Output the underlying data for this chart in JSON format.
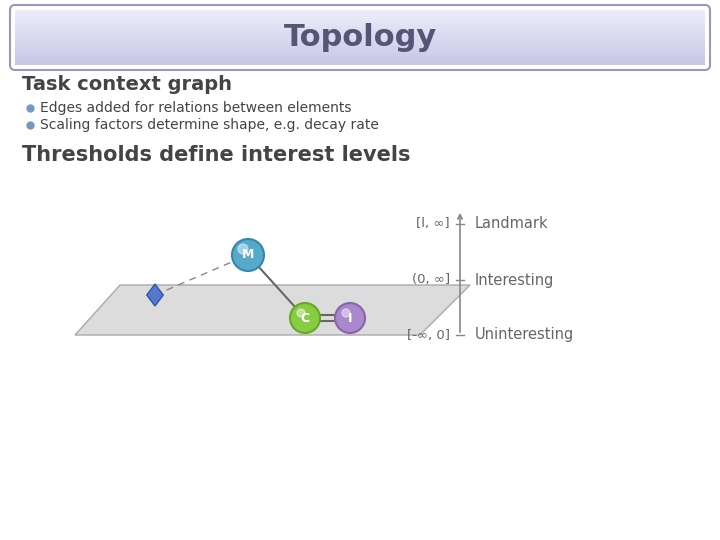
{
  "title": "Topology",
  "title_color": "#555577",
  "title_fontsize": 22,
  "header_bg": "#cccce8",
  "header_border": "#9999bb",
  "section1": "Task context graph",
  "bullet1": "Edges added for relations between elements",
  "bullet2": "Scaling factors determine shape, e.g. decay rate",
  "section2": "Thresholds define interest levels",
  "label_landmark": "Landmark",
  "label_interesting": "Interesting",
  "label_uninteresting": "Uninteresting",
  "range_landmark": "[l, ∞]",
  "range_interesting": "(0, ∞]",
  "range_uninteresting": "[-∞, 0]",
  "text_color": "#444444",
  "section_color": "#444444",
  "bg_color": "#ffffff",
  "bullet_color": "#7799bb",
  "floor_color": "#dcdcdc",
  "floor_edge": "#aaaaaa",
  "axis_color": "#888888",
  "range_color": "#666666",
  "node_m_color": "#55aacc",
  "node_m_edge": "#3388aa",
  "node_c_color": "#88cc44",
  "node_c_edge": "#66aa22",
  "node_i_color": "#aa88cc",
  "node_i_edge": "#8866aa",
  "diamond_color": "#5577cc",
  "diamond_edge": "#3355aa",
  "edge_color": "#666666"
}
